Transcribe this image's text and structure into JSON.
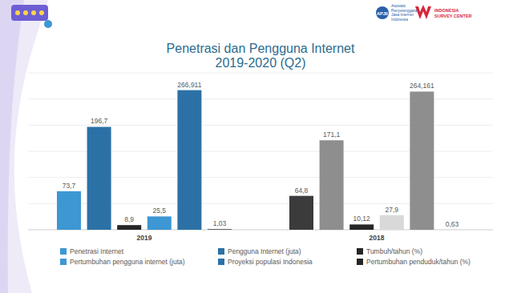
{
  "chart_data": {
    "type": "bar",
    "title": "Penetrasi dan Pengguna Internet",
    "subtitle": "2019-2020 (Q2)",
    "annotations": [
      "APJII",
      "Asosiasi",
      "Penyelenggara",
      "Jasa Internet",
      "Indonesia",
      "INDONESIA",
      "SURVEY CENTER"
    ],
    "categories": [
      "2019",
      "2018"
    ],
    "series": [
      {
        "name": "Penetrasi Internet",
        "colors": [
          "#3c97d3",
          "#3b3b3b"
        ],
        "values": [
          73.7,
          64.8
        ],
        "value_labels": [
          "73,7",
          "64,8"
        ]
      },
      {
        "name": "Pengguna Internet (juta)",
        "colors": [
          "#2c71a6",
          "#8e8e8e"
        ],
        "values": [
          196.7,
          171.1
        ],
        "value_labels": [
          "196,7",
          "171,1"
        ]
      },
      {
        "name": "Tumbuh/tahun (%)",
        "colors": [
          "#262626",
          "#262626"
        ],
        "values": [
          8.9,
          10.12
        ],
        "value_labels": [
          "8,9",
          "10,12"
        ]
      },
      {
        "name": "Pertumbuhan pengguna internet (juta)",
        "colors": [
          "#3c97d3",
          "#d9d9d9"
        ],
        "values": [
          25.5,
          27.9
        ],
        "value_labels": [
          "25,5",
          "27,9"
        ]
      },
      {
        "name": "Proyeksi populasi Indonesia",
        "colors": [
          "#2c71a6",
          "#8e8e8e"
        ],
        "values": [
          266.911,
          264.161
        ],
        "value_labels": [
          "266,911",
          "264,161"
        ]
      },
      {
        "name": "Pertumbuhan penduduk/tahun (%)",
        "colors": [
          "#262626",
          "#d9d9d9"
        ],
        "values": [
          1.03,
          0.63
        ],
        "value_labels": [
          "1,03",
          "0,63"
        ]
      }
    ],
    "ylim": [
      0,
      300
    ],
    "yticks": [
      0,
      50,
      100,
      150,
      200,
      250,
      300
    ],
    "grid": true,
    "tick_labels": "x",
    "data_labels": true,
    "legend": "bottom"
  }
}
